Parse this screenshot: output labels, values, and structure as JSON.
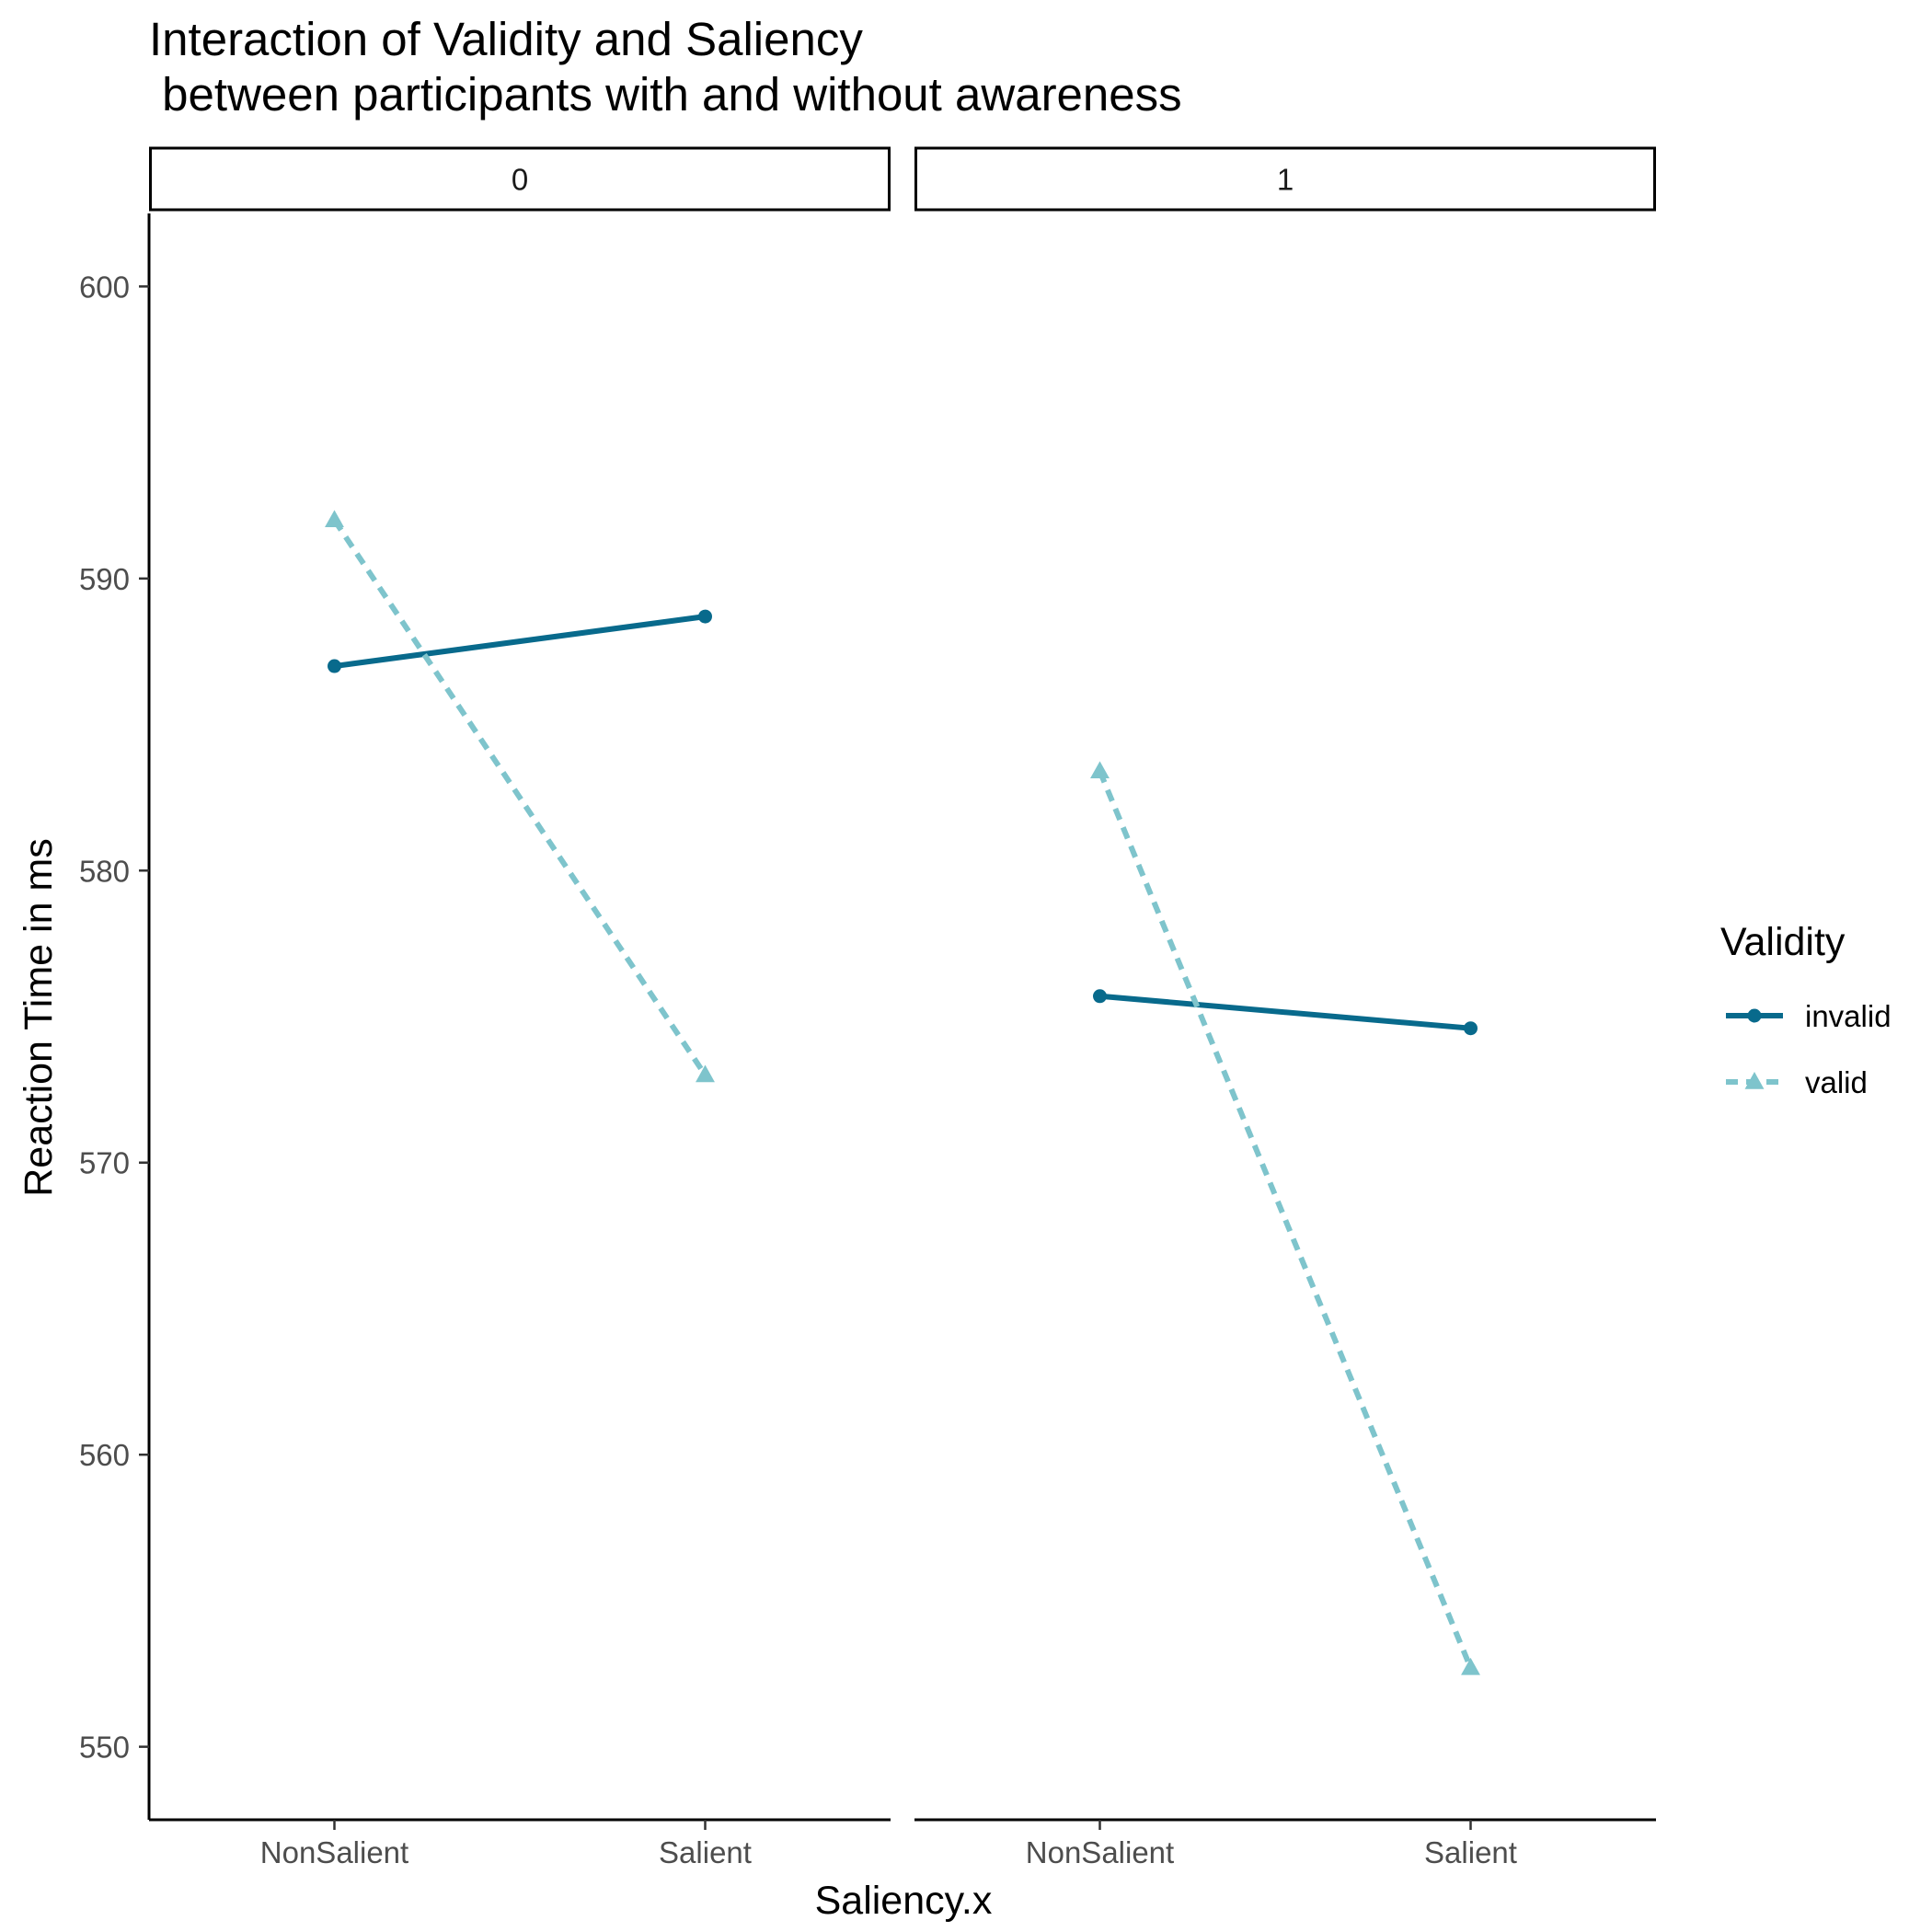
{
  "chart_data": {
    "type": "line",
    "title_lines": [
      "Interaction of Validity and Saliency",
      " between participants with and without awareness"
    ],
    "xlabel": "Saliency.x",
    "ylabel": "Reaction Time in ms",
    "categories": [
      "NonSalient",
      "Salient"
    ],
    "ylim": [
      547.5,
      602.5
    ],
    "yticks": [
      550,
      560,
      570,
      580,
      590,
      600
    ],
    "grid": false,
    "legend": {
      "title": "Validity",
      "position": "right"
    },
    "colors": {
      "invalid": "#086a8c",
      "valid": "#7ec4cc"
    },
    "panels": [
      {
        "label": "0",
        "series": [
          {
            "name": "invalid",
            "values": [
              587.0,
              588.7
            ]
          },
          {
            "name": "valid",
            "values": [
              592.0,
              573.0
            ]
          }
        ]
      },
      {
        "label": "1",
        "series": [
          {
            "name": "invalid",
            "values": [
              575.7,
              574.6
            ]
          },
          {
            "name": "valid",
            "values": [
              583.4,
              552.7
            ]
          }
        ]
      }
    ]
  }
}
